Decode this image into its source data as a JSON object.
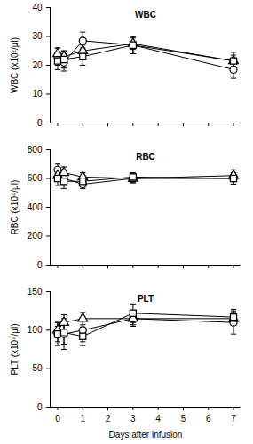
{
  "chart_data": [
    {
      "type": "line",
      "title": "WBC",
      "ylabel": "WBC (x10²/μl)",
      "x": [
        0,
        0.25,
        1,
        3,
        7
      ],
      "xlim": [
        -0.3,
        7.3
      ],
      "xticks": [
        0,
        1,
        2,
        3,
        4,
        5,
        6,
        7
      ],
      "ylim": [
        0,
        40
      ],
      "yticks": [
        0,
        10,
        20,
        30,
        40
      ],
      "grid": false,
      "tick_labels": "y",
      "series": [
        {
          "color": "#000000",
          "marker": "circle",
          "line_style": "solid",
          "values": [
            23,
            21,
            28.5,
            27,
            18.5
          ],
          "errors": [
            3,
            3,
            3,
            3,
            3
          ]
        },
        {
          "color": "#000000",
          "marker": "triangle",
          "line_style": "solid",
          "values": [
            24,
            23,
            25,
            27.5,
            21.5
          ],
          "errors": [
            2,
            2,
            2,
            2,
            2
          ]
        },
        {
          "color": "#000000",
          "marker": "square",
          "line_style": "solid",
          "values": [
            21.5,
            22,
            23,
            27,
            21.5
          ],
          "errors": [
            3,
            3,
            3,
            3,
            3
          ]
        }
      ]
    },
    {
      "type": "line",
      "title": "RBC",
      "ylabel": "RBC (x10⁴/μl)",
      "x": [
        0,
        0.25,
        1,
        3,
        7
      ],
      "xlim": [
        -0.3,
        7.3
      ],
      "xticks": [
        0,
        1,
        2,
        3,
        4,
        5,
        6,
        7
      ],
      "ylim": [
        0,
        800
      ],
      "yticks": [
        0,
        200,
        400,
        600,
        800
      ],
      "grid": false,
      "tick_labels": "y",
      "series": [
        {
          "color": "#000000",
          "marker": "circle",
          "line_style": "solid",
          "values": [
            660,
            600,
            560,
            600,
            600
          ],
          "errors": [
            40,
            40,
            30,
            30,
            40
          ]
        },
        {
          "color": "#000000",
          "marker": "triangle",
          "line_style": "solid",
          "values": [
            620,
            640,
            610,
            600,
            620
          ],
          "errors": [
            40,
            40,
            30,
            30,
            40
          ]
        },
        {
          "color": "#000000",
          "marker": "square",
          "line_style": "solid",
          "values": [
            600,
            580,
            580,
            610,
            600
          ],
          "errors": [
            50,
            50,
            30,
            30,
            40
          ]
        }
      ]
    },
    {
      "type": "line",
      "title": "PLT",
      "ylabel": "PLT (x10⁴/μl)",
      "xlabel": "Days after infusion",
      "x": [
        0,
        0.25,
        1,
        3,
        7
      ],
      "xlim": [
        -0.3,
        7.3
      ],
      "xticks": [
        0,
        1,
        2,
        3,
        4,
        5,
        6,
        7
      ],
      "ylim": [
        0,
        150
      ],
      "yticks": [
        0,
        50,
        100,
        150
      ],
      "grid": false,
      "series": [
        {
          "color": "#000000",
          "marker": "circle",
          "line_style": "solid",
          "values": [
            95,
            95,
            100,
            115,
            110
          ],
          "errors": [
            15,
            20,
            15,
            10,
            15
          ]
        },
        {
          "color": "#000000",
          "marker": "triangle",
          "line_style": "solid",
          "values": [
            100,
            110,
            115,
            115,
            115
          ],
          "errors": [
            10,
            10,
            8,
            8,
            8
          ]
        },
        {
          "color": "#000000",
          "marker": "square",
          "line_style": "solid",
          "values": [
            95,
            97,
            92,
            122,
            117
          ],
          "errors": [
            10,
            15,
            12,
            12,
            10
          ]
        }
      ]
    }
  ]
}
